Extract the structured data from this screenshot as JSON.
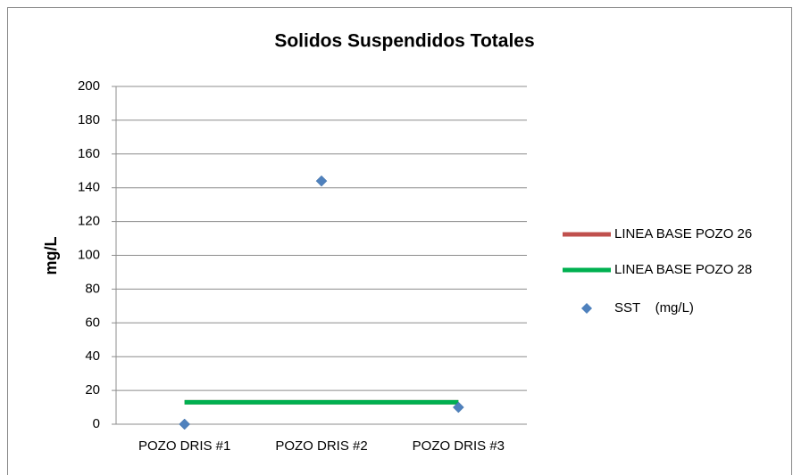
{
  "chart_data": {
    "type": "line",
    "title": "Solidos Suspendidos Totales",
    "y_label": "mg/L",
    "categories": [
      "POZO DRIS #1",
      "POZO DRIS #2",
      "POZO DRIS #3"
    ],
    "series": [
      {
        "name": "LINEA BASE POZO 26",
        "color": "#c0504d",
        "values": [
          13,
          13,
          13
        ],
        "style": "line"
      },
      {
        "name": "LINEA BASE POZO 28",
        "color": "#00b050",
        "values": [
          13,
          13,
          13
        ],
        "style": "line"
      },
      {
        "name": "SST    (mg/L)",
        "color": "#4f81bd",
        "values": [
          0,
          144,
          10
        ],
        "style": "marker"
      }
    ],
    "ylim": [
      0,
      200
    ],
    "yticks": [
      0,
      20,
      40,
      60,
      80,
      100,
      120,
      140,
      160,
      180,
      200
    ],
    "grid": true,
    "legend": "right"
  }
}
